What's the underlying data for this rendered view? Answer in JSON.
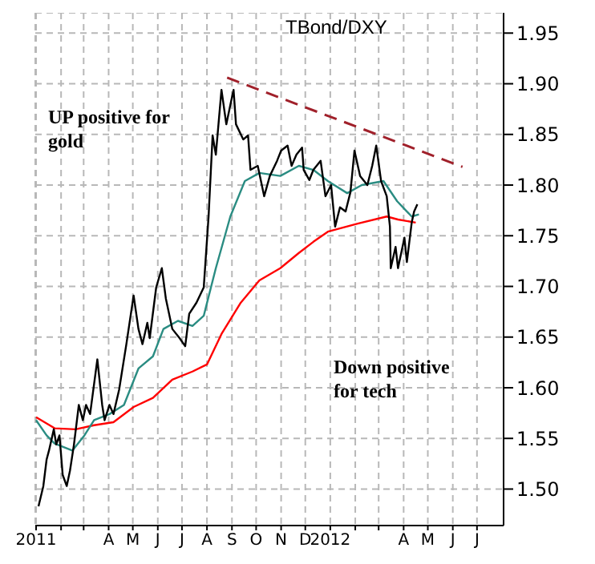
{
  "chart_data": {
    "type": "line",
    "title": "TBond/DXY",
    "annotations": [
      "UP positive for gold",
      "Down positive for tech"
    ],
    "xlim": [
      "2010-12-31",
      "2012-08-03"
    ],
    "xticks": [
      {
        "value": "2011-01-01",
        "label": "2011"
      },
      {
        "value": "2011-02-01",
        "label": null
      },
      {
        "value": "2011-03-01",
        "label": null
      },
      {
        "value": "2011-04-01",
        "label": "A"
      },
      {
        "value": "2011-05-01",
        "label": "M"
      },
      {
        "value": "2011-06-01",
        "label": "J"
      },
      {
        "value": "2011-07-01",
        "label": "J"
      },
      {
        "value": "2011-08-01",
        "label": "A"
      },
      {
        "value": "2011-09-01",
        "label": "S"
      },
      {
        "value": "2011-10-01",
        "label": "O"
      },
      {
        "value": "2011-11-01",
        "label": "N"
      },
      {
        "value": "2011-12-01",
        "label": "D"
      },
      {
        "value": "2012-01-01",
        "label": "2012"
      },
      {
        "value": "2012-02-01",
        "label": null
      },
      {
        "value": "2012-03-01",
        "label": null
      },
      {
        "value": "2012-04-01",
        "label": "A"
      },
      {
        "value": "2012-05-01",
        "label": "M"
      },
      {
        "value": "2012-06-01",
        "label": "J"
      },
      {
        "value": "2012-07-01",
        "label": "J"
      }
    ],
    "ylim": [
      1.464,
      1.97
    ],
    "yticks": [
      {
        "value": 1.5,
        "label": "1.50"
      },
      {
        "value": 1.55,
        "label": "1.55"
      },
      {
        "value": 1.6,
        "label": "1.60"
      },
      {
        "value": 1.65,
        "label": "1.65"
      },
      {
        "value": 1.7,
        "label": "1.70"
      },
      {
        "value": 1.75,
        "label": "1.75"
      },
      {
        "value": 1.8,
        "label": "1.80"
      },
      {
        "value": 1.85,
        "label": "1.85"
      },
      {
        "value": 1.9,
        "label": "1.90"
      },
      {
        "value": 1.95,
        "label": "1.95"
      }
    ],
    "grid": true,
    "marker": "none",
    "series": [
      {
        "color": "#ff0000",
        "x": [
          "2011-01-01",
          "2011-01-24",
          "2011-02-19",
          "2011-03-14",
          "2011-04-07",
          "2011-05-02",
          "2011-05-26",
          "2011-06-19",
          "2011-07-14",
          "2011-08-01",
          "2011-08-19",
          "2011-09-12",
          "2011-10-05",
          "2011-10-31",
          "2011-11-23",
          "2011-12-11",
          "2011-12-29",
          "2012-02-04",
          "2012-03-11",
          "2012-03-25",
          "2012-04-16"
        ],
        "values": [
          1.571,
          1.56,
          1.559,
          1.563,
          1.566,
          1.581,
          1.59,
          1.608,
          1.616,
          1.623,
          1.653,
          1.684,
          1.706,
          1.718,
          1.733,
          1.744,
          1.754,
          1.762,
          1.769,
          1.766,
          1.763
        ]
      },
      {
        "color": "#2a8c82",
        "x": [
          "2011-01-01",
          "2011-01-14",
          "2011-01-24",
          "2011-02-15",
          "2011-03-02",
          "2011-03-14",
          "2011-04-02",
          "2011-04-20",
          "2011-05-08",
          "2011-05-26",
          "2011-06-08",
          "2011-06-26",
          "2011-07-14",
          "2011-07-28",
          "2011-08-12",
          "2011-08-30",
          "2011-09-17",
          "2011-10-05",
          "2011-10-31",
          "2011-11-23",
          "2011-12-11",
          "2011-12-29",
          "2012-01-22",
          "2012-02-09",
          "2012-03-07",
          "2012-03-24",
          "2012-04-11",
          "2012-04-20"
        ],
        "values": [
          1.568,
          1.553,
          1.545,
          1.538,
          1.553,
          1.568,
          1.574,
          1.583,
          1.619,
          1.631,
          1.658,
          1.666,
          1.661,
          1.671,
          1.718,
          1.769,
          1.804,
          1.812,
          1.809,
          1.819,
          1.815,
          1.804,
          1.792,
          1.8,
          1.804,
          1.784,
          1.769,
          1.771
        ]
      },
      {
        "color": "#000000",
        "x": [
          "2011-01-04",
          "2011-01-10",
          "2011-01-14",
          "2011-01-17",
          "2011-01-23",
          "2011-01-26",
          "2011-01-30",
          "2011-02-03",
          "2011-02-08",
          "2011-02-12",
          "2011-02-17",
          "2011-02-23",
          "2011-02-28",
          "2011-03-04",
          "2011-03-09",
          "2011-03-18",
          "2011-03-24",
          "2011-03-27",
          "2011-04-02",
          "2011-04-07",
          "2011-04-14",
          "2011-04-23",
          "2011-05-02",
          "2011-05-08",
          "2011-05-13",
          "2011-05-19",
          "2011-05-22",
          "2011-05-30",
          "2011-06-06",
          "2011-06-11",
          "2011-06-19",
          "2011-06-28",
          "2011-07-05",
          "2011-07-10",
          "2011-07-19",
          "2011-07-28",
          "2011-08-03",
          "2011-08-08",
          "2011-08-12",
          "2011-08-19",
          "2011-08-25",
          "2011-08-30",
          "2011-09-03",
          "2011-09-06",
          "2011-09-15",
          "2011-09-21",
          "2011-09-24",
          "2011-10-03",
          "2011-10-11",
          "2011-10-18",
          "2011-10-27",
          "2011-11-01",
          "2011-11-09",
          "2011-11-14",
          "2011-11-20",
          "2011-11-27",
          "2011-11-29",
          "2011-12-06",
          "2011-12-11",
          "2011-12-20",
          "2011-12-26",
          "2012-01-02",
          "2012-01-07",
          "2012-01-13",
          "2012-01-20",
          "2012-01-26",
          "2012-01-31",
          "2012-02-07",
          "2012-02-16",
          "2012-02-22",
          "2012-02-27",
          "2012-03-04",
          "2012-03-11",
          "2012-03-15",
          "2012-03-16",
          "2012-03-22",
          "2012-03-25",
          "2012-04-02",
          "2012-04-05",
          "2012-04-11",
          "2012-04-14",
          "2012-04-18"
        ],
        "values": [
          1.483,
          1.503,
          1.529,
          1.538,
          1.559,
          1.544,
          1.553,
          1.514,
          1.503,
          1.518,
          1.544,
          1.583,
          1.568,
          1.583,
          1.574,
          1.628,
          1.583,
          1.568,
          1.583,
          1.574,
          1.598,
          1.643,
          1.691,
          1.658,
          1.643,
          1.664,
          1.649,
          1.699,
          1.718,
          1.688,
          1.658,
          1.649,
          1.641,
          1.673,
          1.684,
          1.699,
          1.769,
          1.849,
          1.83,
          1.894,
          1.86,
          1.879,
          1.894,
          1.86,
          1.845,
          1.849,
          1.815,
          1.819,
          1.789,
          1.809,
          1.824,
          1.834,
          1.839,
          1.819,
          1.83,
          1.837,
          1.815,
          1.805,
          1.815,
          1.824,
          1.789,
          1.8,
          1.759,
          1.778,
          1.774,
          1.793,
          1.834,
          1.809,
          1.8,
          1.819,
          1.839,
          1.804,
          1.789,
          1.759,
          1.718,
          1.739,
          1.718,
          1.748,
          1.724,
          1.763,
          1.774,
          1.781
        ]
      },
      {
        "type": "line",
        "line_style": "dashed",
        "color": "#a0202a",
        "x": [
          "2011-08-26",
          "2012-06-13"
        ],
        "values": [
          1.906,
          1.818
        ]
      }
    ]
  }
}
